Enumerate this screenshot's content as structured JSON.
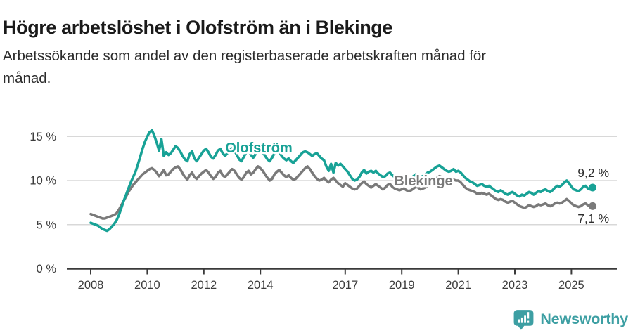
{
  "header": {
    "title": "Högre arbetslöshet i Olofström än i Blekinge",
    "subtitle_line1": "Arbetssökande som andel av den registerbaserade arbetskraften månad för",
    "subtitle_line2": "månad."
  },
  "footer": {
    "brand": "Newsworthy",
    "brand_color": "#3d9fa3",
    "logo_icon": "newsworthy-speech-bubble-bar-chart-icon"
  },
  "chart_data": {
    "type": "line",
    "unit": "%",
    "x_start": {
      "year": 2008,
      "month": 1
    },
    "x_end": {
      "year": 2025,
      "month": 10
    },
    "x_ticks": [
      2008,
      2010,
      2012,
      2014,
      2017,
      2019,
      2021,
      2023,
      2025
    ],
    "y_ticks": [
      {
        "value": 0,
        "label": "0 %"
      },
      {
        "value": 5,
        "label": "5 %"
      },
      {
        "value": 10,
        "label": "10 %"
      },
      {
        "value": 15,
        "label": "15 %"
      }
    ],
    "ylim": [
      0,
      16.5
    ],
    "grid": "horizontal",
    "legend_position": "inline-labels",
    "series": [
      {
        "name": "Blekinge",
        "color": "#7a7a7a",
        "end_label": "7,1 %",
        "end_value": 7.1,
        "values": [
          6.2,
          6.1,
          6.0,
          5.9,
          5.8,
          5.7,
          5.7,
          5.8,
          5.9,
          6.0,
          6.1,
          6.3,
          6.7,
          7.2,
          7.7,
          8.2,
          8.7,
          9.1,
          9.5,
          9.8,
          10.1,
          10.4,
          10.7,
          10.9,
          11.1,
          11.3,
          11.4,
          11.2,
          10.9,
          10.5,
          10.8,
          11.2,
          10.6,
          10.7,
          11.0,
          11.3,
          11.5,
          11.6,
          11.3,
          10.8,
          10.4,
          10.1,
          10.6,
          10.9,
          10.4,
          10.2,
          10.5,
          10.8,
          11.0,
          11.2,
          10.9,
          10.5,
          10.2,
          10.4,
          10.9,
          11.1,
          10.6,
          10.4,
          10.7,
          11.0,
          11.3,
          11.1,
          10.7,
          10.3,
          10.1,
          10.4,
          10.9,
          11.1,
          10.7,
          10.9,
          11.3,
          11.6,
          11.4,
          11.1,
          10.7,
          10.3,
          10.0,
          10.2,
          10.7,
          11.0,
          11.2,
          10.9,
          10.6,
          10.4,
          10.6,
          10.3,
          10.1,
          10.2,
          10.5,
          10.8,
          11.1,
          11.4,
          11.6,
          11.3,
          10.9,
          10.5,
          10.2,
          10.0,
          10.1,
          10.3,
          10.0,
          9.8,
          10.1,
          10.3,
          10.0,
          9.7,
          9.5,
          9.3,
          9.7,
          9.5,
          9.3,
          9.1,
          9.0,
          9.1,
          9.4,
          9.7,
          9.9,
          9.6,
          9.4,
          9.2,
          9.4,
          9.6,
          9.4,
          9.2,
          9.0,
          9.2,
          9.5,
          9.6,
          9.3,
          9.1,
          9.0,
          8.9,
          9.0,
          9.1,
          8.9,
          8.8,
          8.9,
          9.1,
          9.3,
          9.2,
          9.0,
          9.1,
          9.2,
          9.4,
          9.5,
          9.7,
          10.0,
          10.3,
          10.5,
          10.4,
          10.2,
          10.1,
          10.0,
          10.0,
          10.1,
          10.0,
          10.0,
          9.8,
          9.5,
          9.2,
          9.0,
          8.9,
          8.8,
          8.7,
          8.5,
          8.5,
          8.6,
          8.5,
          8.4,
          8.5,
          8.3,
          8.1,
          7.9,
          7.8,
          7.9,
          7.8,
          7.6,
          7.5,
          7.6,
          7.7,
          7.5,
          7.3,
          7.1,
          7.0,
          6.9,
          7.0,
          7.2,
          7.1,
          7.0,
          7.1,
          7.3,
          7.2,
          7.3,
          7.4,
          7.2,
          7.1,
          7.2,
          7.4,
          7.5,
          7.4,
          7.5,
          7.7,
          7.9,
          7.7,
          7.4,
          7.2,
          7.1,
          7.0,
          7.1,
          7.3,
          7.4,
          7.2,
          7.0,
          7.1
        ]
      },
      {
        "name": "Olofström",
        "color": "#18a296",
        "end_label": "9,2 %",
        "end_value": 9.2,
        "values": [
          5.2,
          5.1,
          5.0,
          4.9,
          4.7,
          4.5,
          4.4,
          4.3,
          4.5,
          4.8,
          5.1,
          5.5,
          6.1,
          6.9,
          7.7,
          8.4,
          9.1,
          9.8,
          10.4,
          11.0,
          11.8,
          12.7,
          13.6,
          14.4,
          15.0,
          15.5,
          15.7,
          15.1,
          14.3,
          13.4,
          14.7,
          12.8,
          13.2,
          12.9,
          13.1,
          13.5,
          13.9,
          13.7,
          13.3,
          12.8,
          12.4,
          12.2,
          13.0,
          13.3,
          12.5,
          12.2,
          12.6,
          13.0,
          13.4,
          13.6,
          13.2,
          12.7,
          12.5,
          12.9,
          13.4,
          13.6,
          13.1,
          12.8,
          13.1,
          13.5,
          13.7,
          13.4,
          12.9,
          12.4,
          12.2,
          12.7,
          13.2,
          13.4,
          12.9,
          12.6,
          13.0,
          13.3,
          13.5,
          13.2,
          12.8,
          12.4,
          12.2,
          12.6,
          13.1,
          13.4,
          13.2,
          12.8,
          12.5,
          12.3,
          12.5,
          12.2,
          12.0,
          12.3,
          12.6,
          12.9,
          13.2,
          13.3,
          13.2,
          13.0,
          12.8,
          13.0,
          13.1,
          12.8,
          12.5,
          12.3,
          11.6,
          11.1,
          11.9,
          10.9,
          12.0,
          11.7,
          11.9,
          11.6,
          11.3,
          11.0,
          10.6,
          10.2,
          10.0,
          10.1,
          10.4,
          10.9,
          11.2,
          10.8,
          11.0,
          11.1,
          10.9,
          11.1,
          10.8,
          10.6,
          10.4,
          10.5,
          10.8,
          10.9,
          10.6,
          10.4,
          10.4,
          10.3,
          10.4,
          10.5,
          10.3,
          10.2,
          10.3,
          10.5,
          10.7,
          10.6,
          10.4,
          10.5,
          10.7,
          10.9,
          11.0,
          11.2,
          11.4,
          11.6,
          11.7,
          11.5,
          11.3,
          11.1,
          11.0,
          11.1,
          11.3,
          11.0,
          11.1,
          10.9,
          10.6,
          10.3,
          10.1,
          9.9,
          9.8,
          9.6,
          9.4,
          9.5,
          9.6,
          9.4,
          9.3,
          9.4,
          9.2,
          9.0,
          8.8,
          8.7,
          8.9,
          8.7,
          8.5,
          8.4,
          8.6,
          8.7,
          8.5,
          8.3,
          8.2,
          8.4,
          8.3,
          8.5,
          8.7,
          8.6,
          8.4,
          8.6,
          8.8,
          8.7,
          8.9,
          9.0,
          8.8,
          8.7,
          8.9,
          9.2,
          9.4,
          9.3,
          9.5,
          9.8,
          10.0,
          9.7,
          9.3,
          9.0,
          8.9,
          8.8,
          9.0,
          9.3,
          9.4,
          9.1,
          9.0,
          9.2
        ]
      }
    ]
  }
}
